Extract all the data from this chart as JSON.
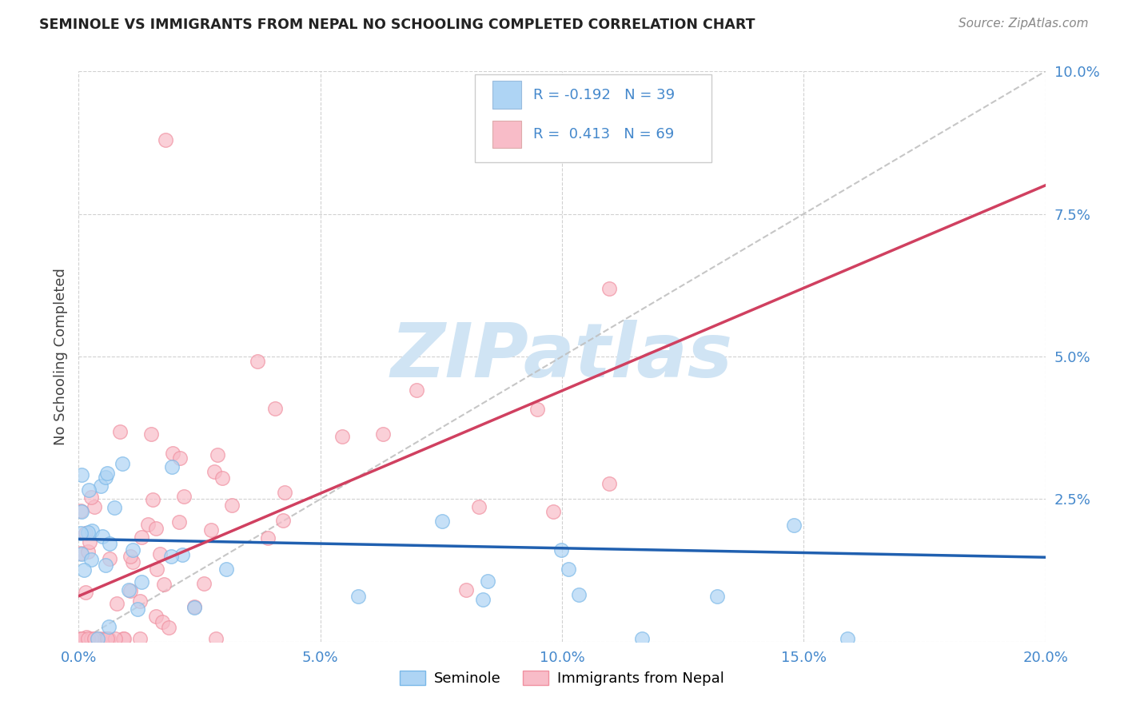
{
  "title": "SEMINOLE VS IMMIGRANTS FROM NEPAL NO SCHOOLING COMPLETED CORRELATION CHART",
  "source": "Source: ZipAtlas.com",
  "ylabel": "No Schooling Completed",
  "legend_line1": "R = -0.192   N = 39",
  "legend_line2": "R =  0.413   N = 69",
  "bottom_legend": [
    "Seminole",
    "Immigrants from Nepal"
  ],
  "seminole_color": "#7ab8e8",
  "nepal_color": "#f090a0",
  "seminole_fill": "#aed4f4",
  "nepal_fill": "#f8bcc8",
  "seminole_line_color": "#2060b0",
  "nepal_line_color": "#d04060",
  "diagonal_line_color": "#c0c0c0",
  "xlim": [
    0.0,
    0.2
  ],
  "ylim": [
    0.0,
    0.1
  ],
  "xticks": [
    0.0,
    0.05,
    0.1,
    0.15,
    0.2
  ],
  "xticklabels": [
    "0.0%",
    "5.0%",
    "10.0%",
    "15.0%",
    "20.0%"
  ],
  "yticks_right": [
    0.0,
    0.025,
    0.05,
    0.075,
    0.1
  ],
  "yticklabels_right": [
    "",
    "2.5%",
    "5.0%",
    "7.5%",
    "10.0%"
  ],
  "background_color": "#ffffff",
  "grid_color": "#cccccc",
  "watermark": "ZIPatlas",
  "watermark_color": "#d0e4f4",
  "tick_color": "#4488cc",
  "title_color": "#222222",
  "source_color": "#888888",
  "sem_intercept": 0.018,
  "sem_slope": -0.016,
  "nep_intercept": 0.008,
  "nep_slope": 0.36
}
